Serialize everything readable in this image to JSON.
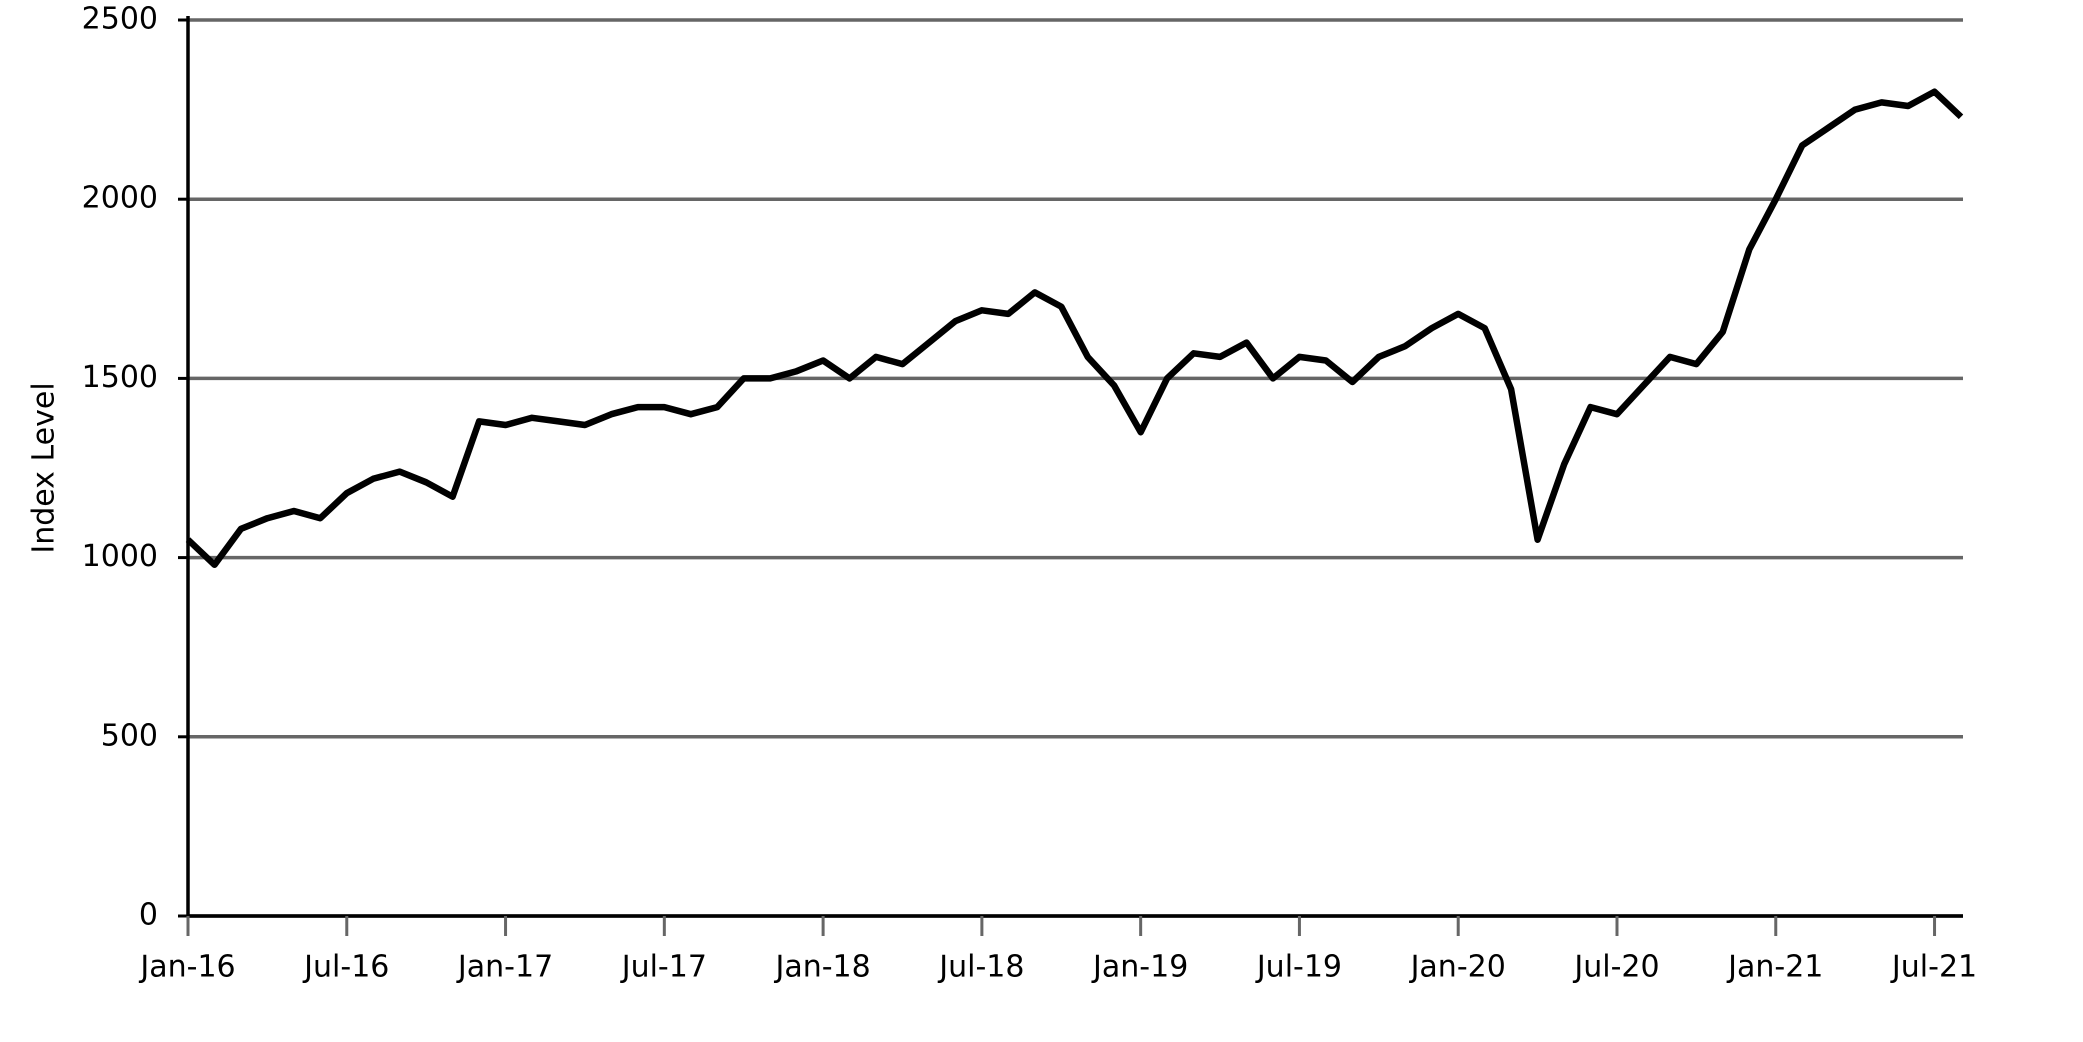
{
  "chart_data": {
    "type": "line",
    "y_label": "Index Level",
    "categories": [
      "Jan-16",
      null,
      null,
      null,
      null,
      null,
      "Jul-16",
      null,
      null,
      null,
      null,
      null,
      "Jan-17",
      null,
      null,
      null,
      null,
      null,
      "Jul-17",
      null,
      null,
      null,
      null,
      null,
      "Jan-18",
      null,
      null,
      null,
      null,
      null,
      "Jul-18",
      null,
      null,
      null,
      null,
      null,
      "Jan-19",
      null,
      null,
      null,
      null,
      null,
      "Jul-19",
      null,
      null,
      null,
      null,
      null,
      "Jan-20",
      null,
      null,
      null,
      null,
      null,
      "Jul-20",
      null,
      null,
      null,
      null,
      null,
      "Jan-21",
      null,
      null,
      null,
      null,
      null,
      "Jul-21",
      null
    ],
    "series": [
      {
        "color": "#000000",
        "values": [
          1050,
          980,
          1080,
          1110,
          1130,
          1110,
          1180,
          1220,
          1240,
          1210,
          1170,
          1380,
          1370,
          1390,
          1380,
          1370,
          1400,
          1420,
          1420,
          1400,
          1420,
          1500,
          1500,
          1520,
          1550,
          1500,
          1560,
          1540,
          1600,
          1660,
          1690,
          1680,
          1740,
          1700,
          1560,
          1480,
          1350,
          1500,
          1570,
          1560,
          1600,
          1500,
          1560,
          1550,
          1490,
          1560,
          1590,
          1640,
          1680,
          1640,
          1470,
          1050,
          1260,
          1420,
          1400,
          1480,
          1560,
          1540,
          1630,
          1860,
          2000,
          2150,
          2200,
          2250,
          2270,
          2260,
          2300,
          2230
        ]
      }
    ],
    "ylim": [
      0,
      2500
    ],
    "yticks": [
      0,
      500,
      1000,
      1500,
      2000,
      2500
    ],
    "grid": true
  }
}
